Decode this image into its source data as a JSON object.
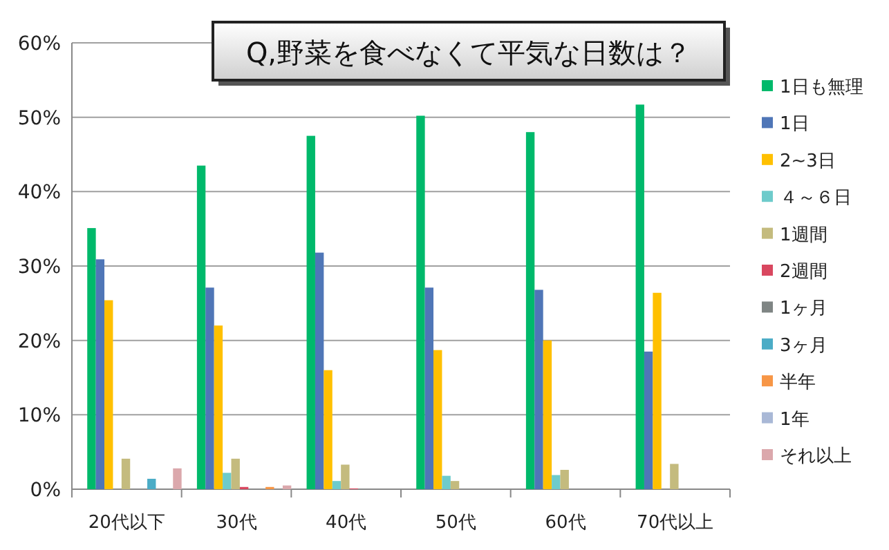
{
  "chart_data": {
    "type": "bar",
    "title": "Q,野菜を食べなくて平気な日数は？",
    "categories": [
      "20代以下",
      "30代",
      "40代",
      "50代",
      "60代",
      "70代以上"
    ],
    "series": [
      {
        "name": "1日も無理",
        "color": "#00b96b",
        "values": [
          35.1,
          43.5,
          47.5,
          50.2,
          48.0,
          51.7
        ]
      },
      {
        "name": "1日",
        "color": "#4f76b7",
        "values": [
          30.9,
          27.1,
          31.8,
          27.1,
          26.8,
          18.5
        ]
      },
      {
        "name": "2~3日",
        "color": "#ffc000",
        "values": [
          25.4,
          22.0,
          16.0,
          18.7,
          20.0,
          26.4
        ]
      },
      {
        "name": "４～６日",
        "color": "#6ecbcb",
        "values": [
          0,
          2.2,
          1.1,
          1.8,
          1.9,
          0
        ]
      },
      {
        "name": "1週間",
        "color": "#c4bb7e",
        "values": [
          4.1,
          4.1,
          3.3,
          1.1,
          2.6,
          3.4
        ]
      },
      {
        "name": "2週間",
        "color": "#d9475f",
        "values": [
          0,
          0.3,
          0.1,
          0,
          0,
          0
        ]
      },
      {
        "name": "1ヶ月",
        "color": "#7f8584",
        "values": [
          0,
          0,
          0,
          null,
          null,
          0
        ]
      },
      {
        "name": "3ヶ月",
        "color": "#4bacc6",
        "values": [
          1.4,
          0,
          0,
          0,
          0,
          0
        ]
      },
      {
        "name": "半年",
        "color": "#f79646",
        "values": [
          0,
          0.3,
          0,
          0,
          0,
          0
        ]
      },
      {
        "name": "1年",
        "color": "#a9b8d6",
        "values": [
          0,
          0,
          0,
          0,
          0,
          0
        ]
      },
      {
        "name": "それ以上",
        "color": "#dba8ac",
        "values": [
          2.8,
          0.5,
          null,
          null,
          0,
          0
        ]
      }
    ],
    "ylim": [
      0,
      60
    ],
    "yticks": [
      {
        "value": 0,
        "label": "0%"
      },
      {
        "value": 10,
        "label": "10%"
      },
      {
        "value": 20,
        "label": "20%"
      },
      {
        "value": 30,
        "label": "30%"
      },
      {
        "value": 40,
        "label": "40%"
      },
      {
        "value": 50,
        "label": "50%"
      },
      {
        "value": 60,
        "label": "60%"
      }
    ],
    "grid": "y",
    "legend": "right"
  }
}
